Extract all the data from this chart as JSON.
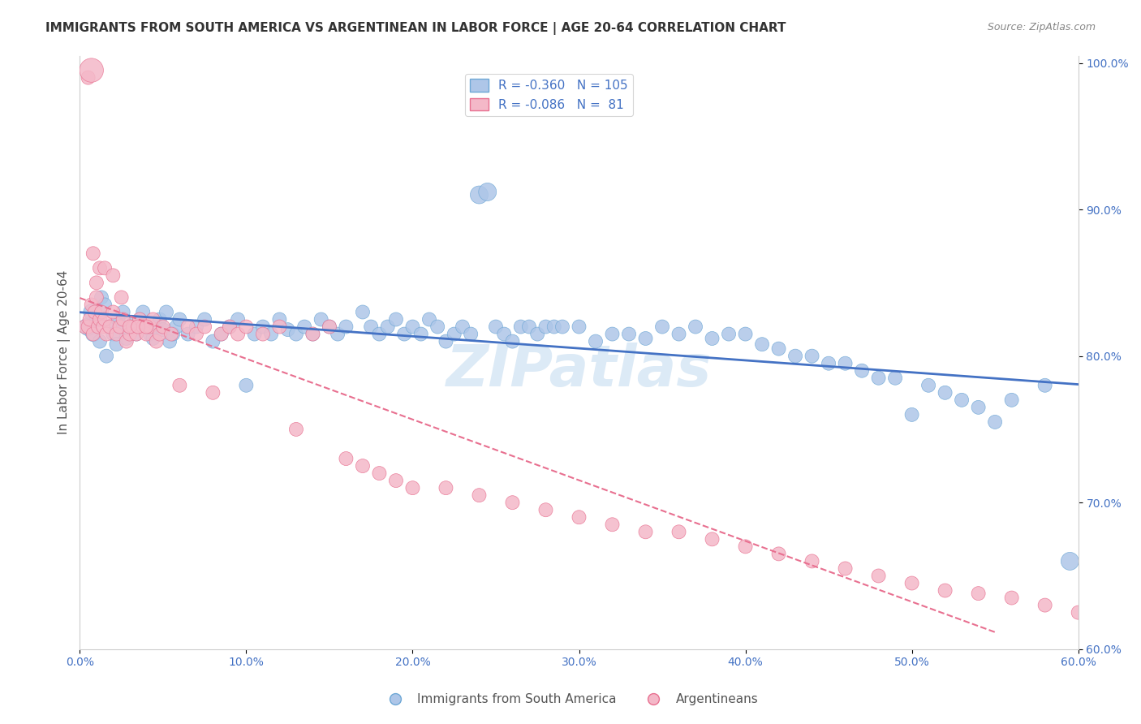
{
  "title": "IMMIGRANTS FROM SOUTH AMERICA VS ARGENTINEAN IN LABOR FORCE | AGE 20-64 CORRELATION CHART",
  "source": "Source: ZipAtlas.com",
  "xlabel_bottom": "",
  "ylabel": "In Labor Force | Age 20-64",
  "watermark": "ZIPatlas",
  "xlim": [
    0.0,
    0.6
  ],
  "ylim": [
    0.6,
    1.005
  ],
  "xticks": [
    0.0,
    0.1,
    0.2,
    0.3,
    0.4,
    0.5,
    0.6
  ],
  "yticks": [
    0.6,
    0.7,
    0.8,
    0.9,
    1.0
  ],
  "blue_R": -0.36,
  "blue_N": 105,
  "pink_R": -0.086,
  "pink_N": 81,
  "blue_color": "#aec6e8",
  "pink_color": "#f4b8c8",
  "blue_edge": "#6fa8d6",
  "pink_edge": "#e87090",
  "trendline_blue": "#4472c4",
  "trendline_pink": "#e87090",
  "axis_label_color": "#4472c4",
  "title_color": "#333333",
  "legend_label_color": "#4472c4",
  "grid_color": "#dddddd",
  "blue_scatter_x": [
    0.005,
    0.007,
    0.008,
    0.01,
    0.012,
    0.013,
    0.015,
    0.016,
    0.018,
    0.02,
    0.022,
    0.023,
    0.025,
    0.026,
    0.028,
    0.03,
    0.032,
    0.034,
    0.036,
    0.038,
    0.04,
    0.042,
    0.044,
    0.046,
    0.048,
    0.05,
    0.052,
    0.054,
    0.056,
    0.058,
    0.06,
    0.065,
    0.07,
    0.075,
    0.08,
    0.085,
    0.09,
    0.095,
    0.1,
    0.105,
    0.11,
    0.115,
    0.12,
    0.125,
    0.13,
    0.135,
    0.14,
    0.145,
    0.15,
    0.155,
    0.16,
    0.17,
    0.175,
    0.18,
    0.185,
    0.19,
    0.195,
    0.2,
    0.205,
    0.21,
    0.215,
    0.22,
    0.225,
    0.23,
    0.235,
    0.24,
    0.245,
    0.25,
    0.255,
    0.26,
    0.265,
    0.27,
    0.275,
    0.28,
    0.285,
    0.29,
    0.3,
    0.31,
    0.32,
    0.33,
    0.34,
    0.35,
    0.36,
    0.37,
    0.38,
    0.39,
    0.4,
    0.41,
    0.42,
    0.43,
    0.44,
    0.45,
    0.46,
    0.47,
    0.48,
    0.49,
    0.5,
    0.51,
    0.52,
    0.53,
    0.54,
    0.55,
    0.56,
    0.58,
    0.595
  ],
  "blue_scatter_y": [
    0.82,
    0.83,
    0.815,
    0.825,
    0.81,
    0.84,
    0.835,
    0.8,
    0.82,
    0.815,
    0.808,
    0.825,
    0.82,
    0.83,
    0.812,
    0.818,
    0.822,
    0.815,
    0.825,
    0.83,
    0.82,
    0.815,
    0.812,
    0.82,
    0.825,
    0.818,
    0.83,
    0.81,
    0.815,
    0.82,
    0.825,
    0.815,
    0.82,
    0.825,
    0.81,
    0.815,
    0.82,
    0.825,
    0.78,
    0.815,
    0.82,
    0.815,
    0.825,
    0.818,
    0.815,
    0.82,
    0.815,
    0.825,
    0.82,
    0.815,
    0.82,
    0.83,
    0.82,
    0.815,
    0.82,
    0.825,
    0.815,
    0.82,
    0.815,
    0.825,
    0.82,
    0.81,
    0.815,
    0.82,
    0.815,
    0.91,
    0.912,
    0.82,
    0.815,
    0.81,
    0.82,
    0.82,
    0.815,
    0.82,
    0.82,
    0.82,
    0.82,
    0.81,
    0.815,
    0.815,
    0.812,
    0.82,
    0.815,
    0.82,
    0.812,
    0.815,
    0.815,
    0.808,
    0.805,
    0.8,
    0.8,
    0.795,
    0.795,
    0.79,
    0.785,
    0.785,
    0.76,
    0.78,
    0.775,
    0.77,
    0.765,
    0.755,
    0.77,
    0.78,
    0.66
  ],
  "pink_scatter_x": [
    0.003,
    0.005,
    0.006,
    0.007,
    0.008,
    0.009,
    0.01,
    0.011,
    0.012,
    0.013,
    0.014,
    0.015,
    0.016,
    0.018,
    0.02,
    0.022,
    0.024,
    0.026,
    0.028,
    0.03,
    0.032,
    0.034,
    0.036,
    0.038,
    0.04,
    0.042,
    0.044,
    0.046,
    0.048,
    0.05,
    0.055,
    0.06,
    0.065,
    0.07,
    0.075,
    0.08,
    0.085,
    0.09,
    0.095,
    0.1,
    0.11,
    0.12,
    0.13,
    0.14,
    0.15,
    0.16,
    0.17,
    0.18,
    0.19,
    0.2,
    0.22,
    0.24,
    0.26,
    0.28,
    0.3,
    0.32,
    0.34,
    0.36,
    0.38,
    0.4,
    0.42,
    0.44,
    0.46,
    0.48,
    0.5,
    0.52,
    0.54,
    0.56,
    0.58,
    0.6,
    0.01,
    0.012,
    0.008,
    0.015,
    0.02,
    0.025,
    0.005,
    0.007,
    0.03,
    0.035,
    0.04
  ],
  "pink_scatter_y": [
    0.82,
    0.82,
    0.825,
    0.835,
    0.815,
    0.83,
    0.84,
    0.82,
    0.825,
    0.83,
    0.82,
    0.825,
    0.815,
    0.82,
    0.83,
    0.815,
    0.82,
    0.825,
    0.81,
    0.815,
    0.82,
    0.815,
    0.825,
    0.82,
    0.815,
    0.82,
    0.825,
    0.81,
    0.815,
    0.82,
    0.815,
    0.78,
    0.82,
    0.815,
    0.82,
    0.775,
    0.815,
    0.82,
    0.815,
    0.82,
    0.815,
    0.82,
    0.75,
    0.815,
    0.82,
    0.73,
    0.725,
    0.72,
    0.715,
    0.71,
    0.71,
    0.705,
    0.7,
    0.695,
    0.69,
    0.685,
    0.68,
    0.68,
    0.675,
    0.67,
    0.665,
    0.66,
    0.655,
    0.65,
    0.645,
    0.64,
    0.638,
    0.635,
    0.63,
    0.625,
    0.85,
    0.86,
    0.87,
    0.86,
    0.855,
    0.84,
    0.99,
    0.995,
    0.82,
    0.82,
    0.82
  ],
  "blue_sizes": [
    50,
    40,
    35,
    30,
    30,
    30,
    30,
    30,
    30,
    30,
    30,
    30,
    30,
    30,
    30,
    30,
    30,
    30,
    30,
    30,
    30,
    30,
    30,
    30,
    30,
    30,
    30,
    30,
    30,
    30,
    30,
    30,
    30,
    30,
    30,
    30,
    30,
    30,
    30,
    30,
    30,
    30,
    30,
    30,
    30,
    30,
    30,
    30,
    30,
    30,
    30,
    30,
    30,
    30,
    30,
    30,
    30,
    30,
    30,
    30,
    30,
    30,
    30,
    30,
    30,
    50,
    50,
    30,
    30,
    30,
    30,
    30,
    30,
    30,
    30,
    30,
    30,
    30,
    30,
    30,
    30,
    30,
    30,
    30,
    30,
    30,
    30,
    30,
    30,
    30,
    30,
    30,
    30,
    30,
    30,
    30,
    30,
    30,
    30,
    30,
    30,
    30,
    30,
    30,
    50
  ],
  "pink_sizes": [
    30,
    30,
    30,
    30,
    30,
    30,
    30,
    30,
    30,
    30,
    30,
    30,
    30,
    30,
    30,
    30,
    30,
    30,
    30,
    30,
    30,
    30,
    30,
    30,
    30,
    30,
    30,
    30,
    30,
    30,
    30,
    30,
    30,
    30,
    30,
    30,
    30,
    30,
    30,
    30,
    30,
    30,
    30,
    30,
    30,
    30,
    30,
    30,
    30,
    30,
    30,
    30,
    30,
    30,
    30,
    30,
    30,
    30,
    30,
    30,
    30,
    30,
    30,
    30,
    30,
    30,
    30,
    30,
    30,
    30,
    30,
    30,
    30,
    30,
    30,
    30,
    30,
    90,
    30,
    30,
    30
  ]
}
